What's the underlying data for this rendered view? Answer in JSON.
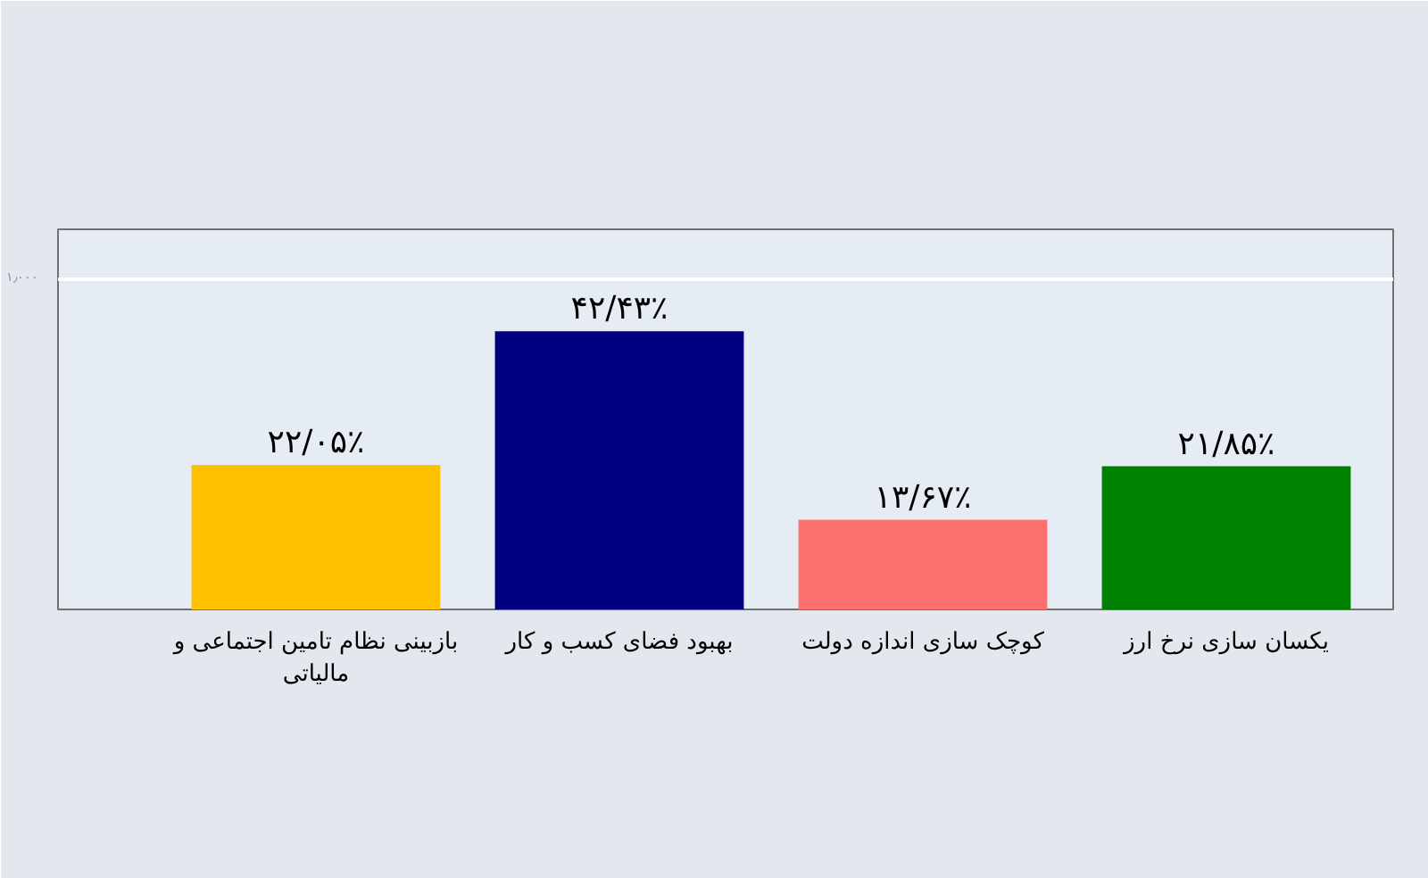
{
  "chart_data": {
    "type": "bar",
    "categories": [
      "بازبینی نظام تامین اجتماعی و مالیاتی",
      "بهبود فضای کسب و کار",
      "کوچک سازی اندازه دولت",
      "یکسان سازی نرخ ارز"
    ],
    "values": [
      22.05,
      42.43,
      13.67,
      21.85
    ],
    "colors": [
      "#ffc000",
      "#000080",
      "#ff7070",
      "#008000"
    ],
    "value_labels": [
      "۲۲/۰۵٪",
      "۴۲/۴۳٪",
      "۱۳/۶۷٪",
      "۲۱/۸۵٪"
    ],
    "ylim": [
      0,
      58
    ],
    "yticks": [
      {
        "value": 50.5,
        "label": "۱٫۰۰۰"
      }
    ],
    "grid": "y"
  }
}
